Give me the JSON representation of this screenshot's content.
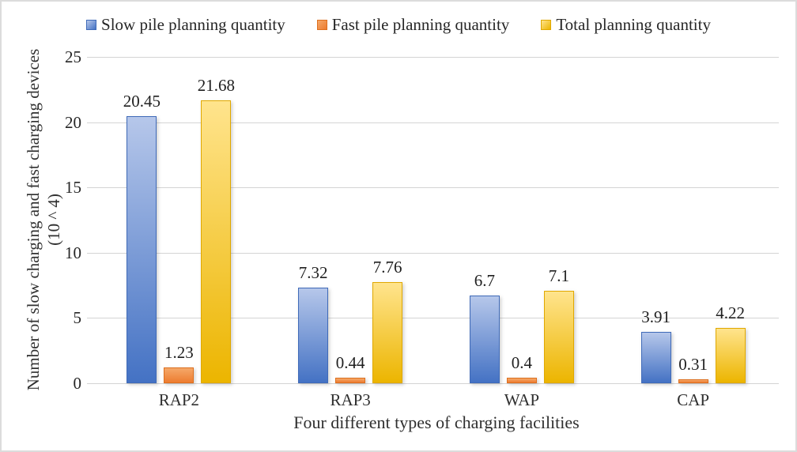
{
  "chart_data": {
    "type": "bar",
    "title": "",
    "categories": [
      "RAP2",
      "RAP3",
      "WAP",
      "CAP"
    ],
    "series": [
      {
        "name": "Slow pile planning quantity",
        "values": [
          20.45,
          7.32,
          6.7,
          3.91
        ],
        "labels": [
          "20.45",
          "7.32",
          "6.7",
          "3.91"
        ],
        "fill_top": "#b6c7ea",
        "fill_bottom": "#4472c4",
        "border": "#3f6ab8"
      },
      {
        "name": "Fast pile planning quantity",
        "values": [
          1.23,
          0.44,
          0.4,
          0.31
        ],
        "labels": [
          "1.23",
          "0.44",
          "0.4",
          "0.31"
        ],
        "fill_top": "#f5a869",
        "fill_bottom": "#ed7c30",
        "border": "#dd6f1e"
      },
      {
        "name": "Total planning quantity",
        "values": [
          21.68,
          7.76,
          7.1,
          4.22
        ],
        "labels": [
          "21.68",
          "7.76",
          "7.1",
          "4.22"
        ],
        "fill_top": "#ffe48d",
        "fill_bottom": "#ecb500",
        "border": "#e0a800"
      }
    ],
    "xlabel": "Four different types of charging facilities",
    "ylabel": "Number of slow charging and fast charging devices",
    "ylabel_unit": "(10 ^ 4)",
    "ylim": [
      0,
      25
    ],
    "yticks": [
      0,
      5,
      10,
      15,
      20,
      25
    ],
    "grid": true,
    "legend_position": "top"
  }
}
